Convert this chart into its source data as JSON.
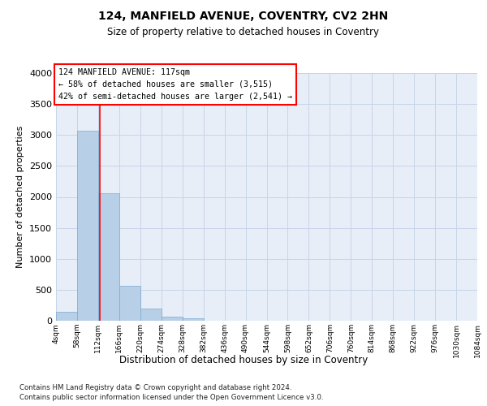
{
  "title1": "124, MANFIELD AVENUE, COVENTRY, CV2 2HN",
  "title2": "Size of property relative to detached houses in Coventry",
  "xlabel": "Distribution of detached houses by size in Coventry",
  "ylabel": "Number of detached properties",
  "footnote1": "Contains HM Land Registry data © Crown copyright and database right 2024.",
  "footnote2": "Contains public sector information licensed under the Open Government Licence v3.0.",
  "bar_color": "#b8cfe8",
  "bar_edge_color": "#7aaad0",
  "grid_color": "#c8d4e8",
  "background_color": "#e8eef8",
  "annotation_line1": "124 MANFIELD AVENUE: 117sqm",
  "annotation_line2": "← 58% of detached houses are smaller (3,515)",
  "annotation_line3": "42% of semi-detached houses are larger (2,541) →",
  "property_size": 117,
  "bin_edges": [
    4,
    58,
    112,
    166,
    220,
    274,
    328,
    382,
    436,
    490,
    544,
    598,
    652,
    706,
    760,
    814,
    868,
    922,
    976,
    1030,
    1084
  ],
  "bar_heights": [
    150,
    3070,
    2060,
    560,
    200,
    70,
    45,
    0,
    0,
    0,
    0,
    0,
    0,
    0,
    0,
    0,
    0,
    0,
    0,
    0
  ],
  "ylim": [
    0,
    4000
  ],
  "xlim": [
    4,
    1084
  ],
  "yticks": [
    0,
    500,
    1000,
    1500,
    2000,
    2500,
    3000,
    3500,
    4000
  ],
  "tick_labels": [
    "4sqm",
    "58sqm",
    "112sqm",
    "166sqm",
    "220sqm",
    "274sqm",
    "328sqm",
    "382sqm",
    "436sqm",
    "490sqm",
    "544sqm",
    "598sqm",
    "652sqm",
    "706sqm",
    "760sqm",
    "814sqm",
    "868sqm",
    "922sqm",
    "976sqm",
    "1030sqm",
    "1084sqm"
  ]
}
